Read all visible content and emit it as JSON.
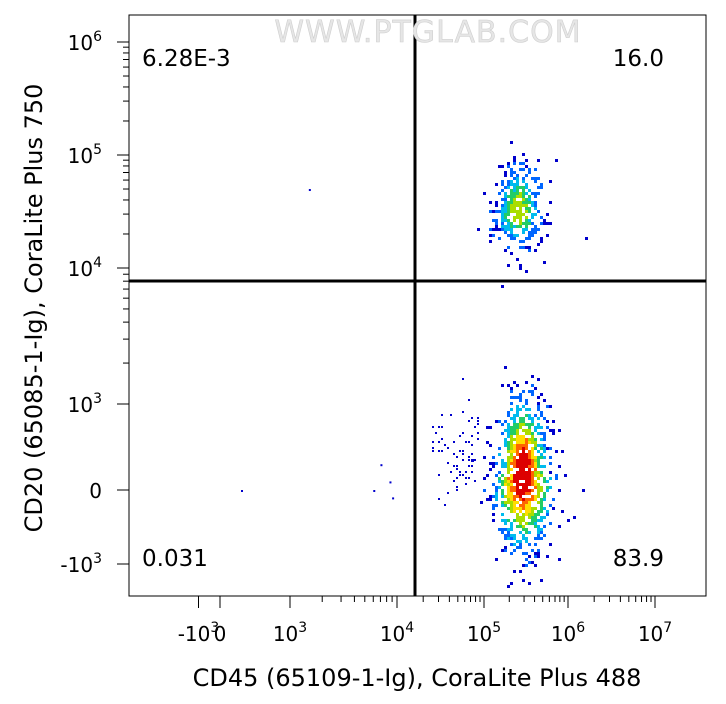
{
  "watermark": "WWW.PTGLAB.COM",
  "chart_data": {
    "type": "scatter",
    "subtype": "flow-cytometry-pseudocolor-dot-plot",
    "xlabel": "CD45 (65109-1-Ig), CoraLite Plus 488",
    "ylabel": "CD20 (65085-1-Ig), CoraLite Plus 750",
    "x_scale": "biexponential",
    "y_scale": "biexponential",
    "x_ticks": [
      {
        "base": "-10",
        "exp": "3",
        "value": -1000
      },
      {
        "base": "0",
        "exp": "",
        "value": 0
      },
      {
        "base": "10",
        "exp": "3",
        "value": 1000
      },
      {
        "base": "10",
        "exp": "4",
        "value": 10000
      },
      {
        "base": "10",
        "exp": "5",
        "value": 100000
      },
      {
        "base": "10",
        "exp": "6",
        "value": 1000000
      },
      {
        "base": "10",
        "exp": "7",
        "value": 10000000
      }
    ],
    "y_ticks": [
      {
        "base": "-10",
        "exp": "3",
        "value": -1000
      },
      {
        "base": "0",
        "exp": "",
        "value": 0
      },
      {
        "base": "10",
        "exp": "3",
        "value": 1000
      },
      {
        "base": "10",
        "exp": "4",
        "value": 10000
      },
      {
        "base": "10",
        "exp": "5",
        "value": 100000
      },
      {
        "base": "10",
        "exp": "6",
        "value": 1000000
      }
    ],
    "gate": {
      "x": 20000,
      "y": 8000
    },
    "quadrants": [
      {
        "position": "top-left",
        "value": "6.28E-3"
      },
      {
        "position": "top-right",
        "value": "16.0"
      },
      {
        "position": "bottom-left",
        "value": "0.031"
      },
      {
        "position": "bottom-right",
        "value": "83.9"
      }
    ],
    "populations": [
      {
        "description": "CD45+ CD20+",
        "x_center": 250000,
        "y_center": 35000
      },
      {
        "description": "CD45+ CD20-",
        "x_center": 280000,
        "y_center": 200
      }
    ],
    "color_scale": [
      "#0000cc",
      "#0066ff",
      "#00bbee",
      "#22cc66",
      "#aadd00",
      "#ffdd00",
      "#ff6600",
      "#dd0000"
    ],
    "grid": false,
    "legend": "none"
  }
}
